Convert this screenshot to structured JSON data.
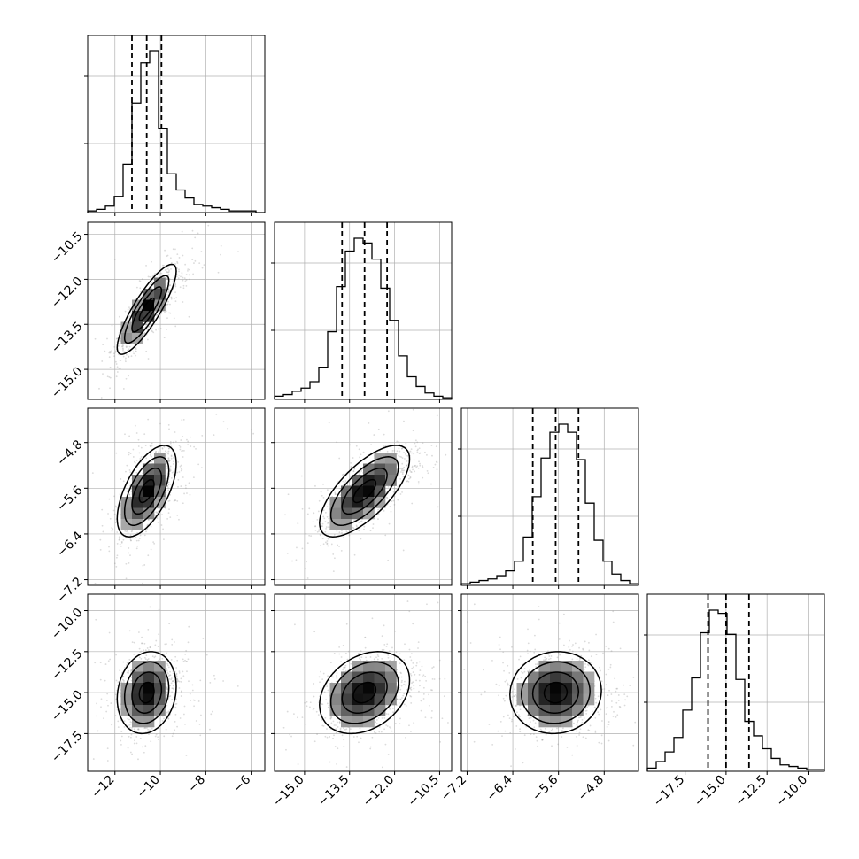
{
  "chart_data": {
    "type": "corner",
    "n_params": 4,
    "title": "",
    "grid": true,
    "quantile_lines": "dashed",
    "params": [
      {
        "label": "",
        "range": [
          -13.2,
          -5.4
        ],
        "ticks": [
          -12,
          -10,
          -8,
          -6
        ],
        "tick_labels": [
          "−12",
          "−10",
          "−8",
          "−6"
        ],
        "hist_heights": [
          0.01,
          0.02,
          0.04,
          0.1,
          0.3,
          0.68,
          0.93,
          1.0,
          0.52,
          0.24,
          0.14,
          0.09,
          0.05,
          0.04,
          0.03,
          0.02,
          0.01,
          0.01,
          0.01,
          0.0
        ],
        "quantiles": [
          -11.25,
          -10.6,
          -9.95
        ]
      },
      {
        "label": "",
        "range": [
          -16.0,
          -10.1
        ],
        "ticks": [
          -15.0,
          -13.5,
          -12.0,
          -10.5
        ],
        "tick_labels": [
          "−15.0",
          "−13.5",
          "−12.0",
          "−10.5"
        ],
        "hist_heights": [
          0.02,
          0.03,
          0.05,
          0.07,
          0.11,
          0.2,
          0.42,
          0.7,
          0.92,
          1.0,
          0.97,
          0.87,
          0.69,
          0.49,
          0.27,
          0.14,
          0.08,
          0.04,
          0.02,
          0.01
        ],
        "quantiles": [
          -13.75,
          -13.0,
          -12.25
        ]
      },
      {
        "label": "",
        "range": [
          -7.3,
          -4.2
        ],
        "ticks": [
          -7.2,
          -6.4,
          -5.6,
          -4.8
        ],
        "tick_labels": [
          "−7.2",
          "−6.4",
          "−5.6",
          "−4.8"
        ],
        "hist_heights": [
          0.01,
          0.02,
          0.03,
          0.04,
          0.06,
          0.09,
          0.15,
          0.3,
          0.55,
          0.79,
          0.95,
          1.0,
          0.95,
          0.78,
          0.51,
          0.28,
          0.15,
          0.07,
          0.03,
          0.01
        ],
        "quantiles": [
          -6.05,
          -5.65,
          -5.25
        ]
      },
      {
        "label": "",
        "range": [
          -19.8,
          -9.0
        ],
        "ticks": [
          -17.5,
          -15.0,
          -12.5,
          -10.0
        ],
        "tick_labels": [
          "−17.5",
          "−15.0",
          "−12.5",
          "−10.0"
        ],
        "hist_heights": [
          0.02,
          0.06,
          0.12,
          0.21,
          0.38,
          0.58,
          0.86,
          1.0,
          0.98,
          0.85,
          0.57,
          0.31,
          0.22,
          0.14,
          0.08,
          0.04,
          0.03,
          0.02,
          0.01,
          0.01
        ],
        "quantiles": [
          -16.1,
          -15.0,
          -13.6
        ]
      }
    ],
    "pairs": [
      {
        "x": 0,
        "y": 1,
        "corr": 0.85
      },
      {
        "x": 0,
        "y": 2,
        "corr": 0.6
      },
      {
        "x": 1,
        "y": 2,
        "corr": 0.7
      },
      {
        "x": 0,
        "y": 3,
        "corr": 0.15
      },
      {
        "x": 1,
        "y": 3,
        "corr": 0.3
      },
      {
        "x": 2,
        "y": 3,
        "corr": 0.05
      }
    ]
  },
  "colors": {
    "line": "#000000",
    "grid": "#b0b0b0",
    "points": "#999999",
    "density_dark": "#000000",
    "background": "#ffffff"
  }
}
